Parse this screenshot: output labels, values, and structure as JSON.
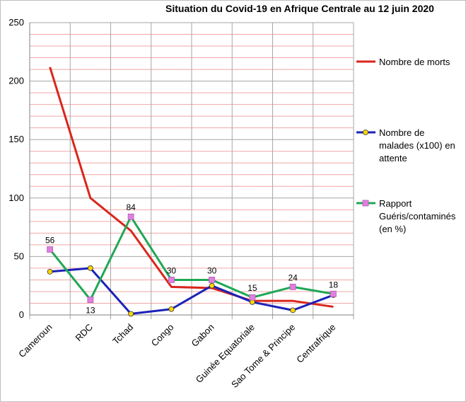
{
  "chart_data": {
    "type": "line",
    "title": "Situation du Covid-19 en Afrique Centrale au 12 juin 2020",
    "categories": [
      "Cameroun",
      "RDC",
      "Tchad",
      "Congo",
      "Gabon",
      "Guinée Equatoriale",
      "Sao Tome & Principe",
      "Centrafrique"
    ],
    "ylim": [
      0,
      250
    ],
    "yticks": [
      0,
      50,
      100,
      150,
      200,
      250
    ],
    "grid": true,
    "legend_position": "right",
    "series": [
      {
        "name_lines": [
          "Nombre de morts"
        ],
        "color": "#d9261c",
        "marker": "none",
        "values": [
          212,
          100,
          72,
          24,
          23,
          12,
          12,
          7
        ],
        "labels": []
      },
      {
        "name_lines": [
          "Nombre de",
          "malades (x100) en",
          "attente"
        ],
        "color": "#1c23b7",
        "marker": "circle",
        "marker_fill": "#ffd700",
        "values": [
          37,
          40,
          1,
          5,
          25,
          11,
          4,
          17
        ],
        "labels": []
      },
      {
        "name_lines": [
          "Rapport",
          "Guéris/contaminés",
          "(en %)"
        ],
        "color": "#1fa855",
        "marker": "square",
        "marker_fill": "#e07fe0",
        "values": [
          56,
          13,
          84,
          30,
          30,
          15,
          24,
          18
        ],
        "labels": [
          "56",
          "13",
          "84",
          "30",
          "30",
          "15",
          "24",
          "18"
        ]
      }
    ]
  }
}
